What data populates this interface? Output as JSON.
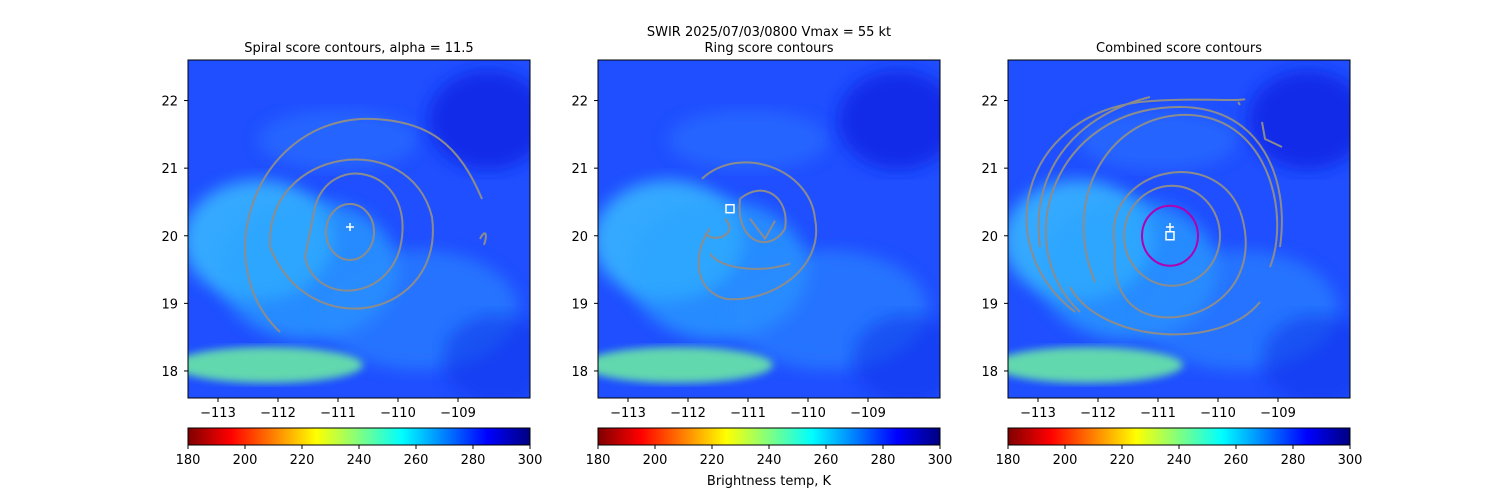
{
  "figure": {
    "suptitle_line1": "SWIR  2025/07/03/0800    Vmax = 55 kt",
    "colorbar_label": "Brightness temp, K"
  },
  "palette": {
    "jet_stops": [
      "#800000",
      "#ff0000",
      "#ff8000",
      "#ffff00",
      "#80ff80",
      "#00ffff",
      "#0080ff",
      "#0000ff",
      "#000080"
    ],
    "background_field": "#1f4fff",
    "contour": "#8c8c8c",
    "center_marker": "#ffffff",
    "ring_marker": "#b000b0"
  },
  "chart_data": [
    {
      "type": "heatmap",
      "title": "Spiral score contours, alpha = 11.5",
      "x_ticks": [
        -113,
        -112,
        -111,
        -110,
        -109
      ],
      "y_ticks": [
        18,
        19,
        20,
        21,
        22
      ],
      "xlim": [
        -113.5,
        -107.8
      ],
      "ylim": [
        17.6,
        22.6
      ],
      "center": {
        "lon": -110.8,
        "lat": 20.13,
        "marker": "plus"
      },
      "colorbar": {
        "vmin": 180,
        "vmax": 300,
        "ticks": [
          180,
          200,
          220,
          240,
          260,
          280,
          300
        ],
        "cmap": "jet_r"
      }
    },
    {
      "type": "heatmap",
      "title": "Ring score contours",
      "x_ticks": [
        -113,
        -112,
        -111,
        -110,
        -109
      ],
      "y_ticks": [
        18,
        19,
        20,
        21,
        22
      ],
      "xlim": [
        -113.5,
        -107.8
      ],
      "ylim": [
        17.6,
        22.6
      ],
      "center": {
        "lon": -111.3,
        "lat": 20.4,
        "marker": "square"
      },
      "colorbar": {
        "vmin": 180,
        "vmax": 300,
        "ticks": [
          180,
          200,
          220,
          240,
          260,
          280,
          300
        ],
        "cmap": "jet_r"
      }
    },
    {
      "type": "heatmap",
      "title": "Combined score contours",
      "x_ticks": [
        -113,
        -112,
        -111,
        -110,
        -109
      ],
      "y_ticks": [
        18,
        19,
        20,
        21,
        22
      ],
      "xlim": [
        -113.5,
        -107.8
      ],
      "ylim": [
        17.6,
        22.6
      ],
      "center": {
        "lon": -110.8,
        "lat": 20.13,
        "marker": "plus"
      },
      "center2": {
        "lon": -110.8,
        "lat": 20.0,
        "marker": "square"
      },
      "ring_radius_deg": 0.45,
      "colorbar": {
        "vmin": 180,
        "vmax": 300,
        "ticks": [
          180,
          200,
          220,
          240,
          260,
          280,
          300
        ],
        "cmap": "jet_r"
      }
    }
  ]
}
